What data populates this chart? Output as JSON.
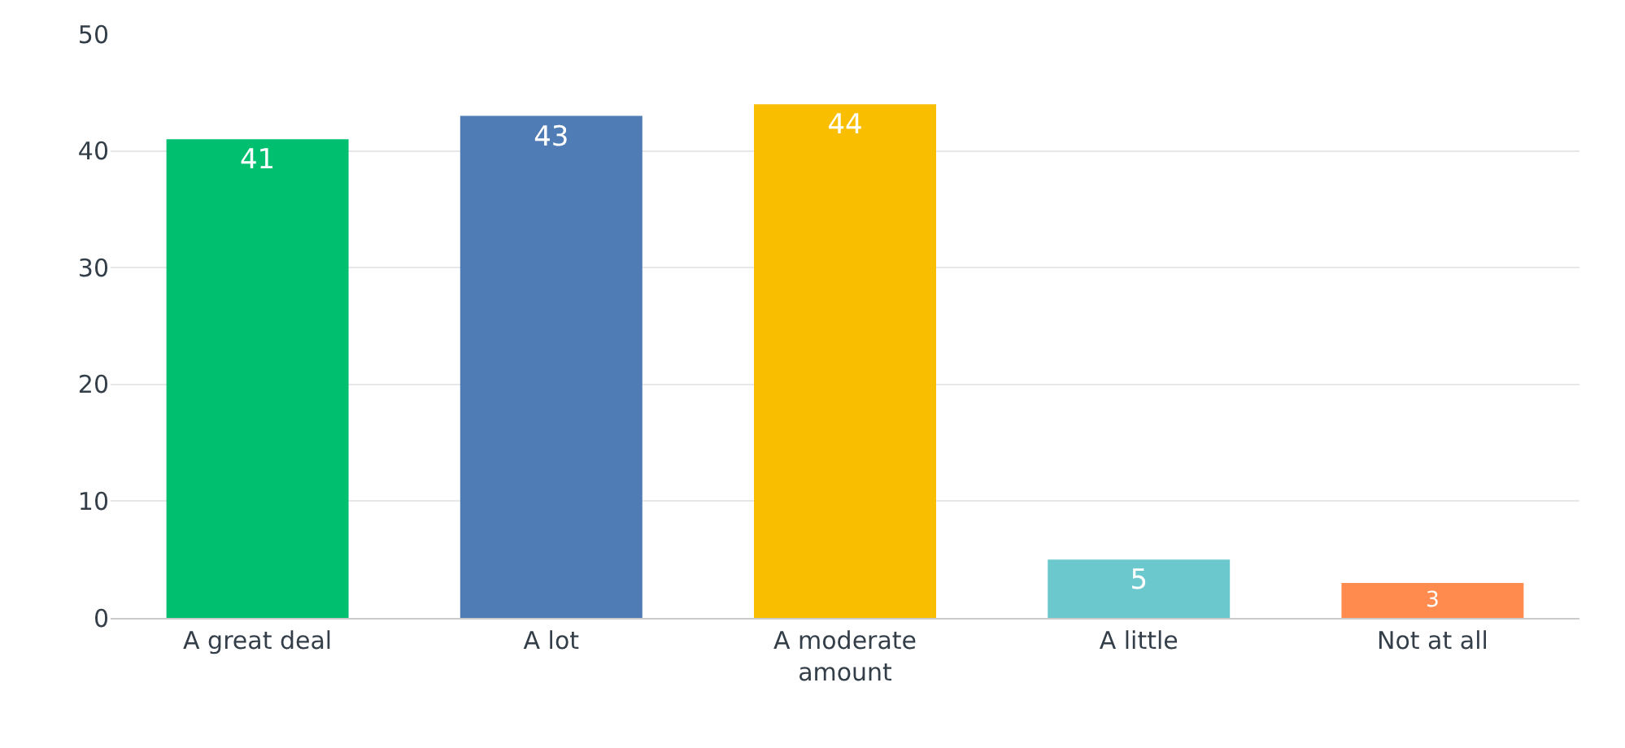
{
  "chart_data": {
    "type": "bar",
    "categories": [
      "A great deal",
      "A lot",
      "A moderate amount",
      "A little",
      "Not at all"
    ],
    "values": [
      41,
      43,
      44,
      5,
      3
    ],
    "colors": [
      "#00bf6f",
      "#507cb6",
      "#f9be00",
      "#6bc8cd",
      "#ff8b4f"
    ],
    "ylim": [
      0,
      50
    ],
    "yticks": [
      0,
      10,
      20,
      30,
      40,
      50
    ],
    "grid": "y",
    "data_labels": true
  }
}
